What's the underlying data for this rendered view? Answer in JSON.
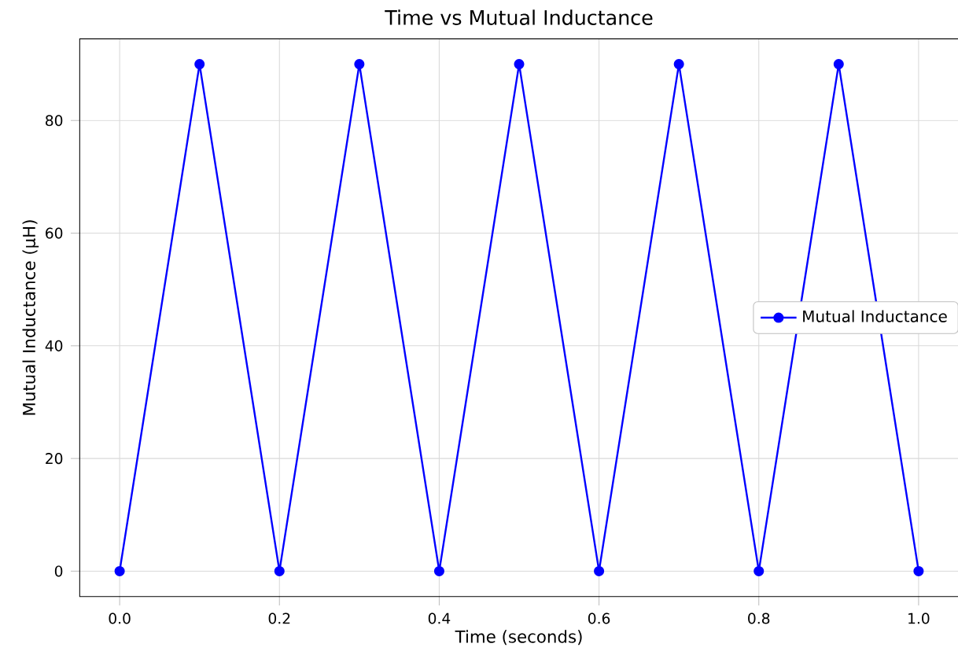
{
  "chart_data": {
    "type": "line",
    "title": "Time vs Mutual Inductance",
    "xlabel": "Time (seconds)",
    "ylabel": "Mutual Inductance (μH)",
    "x": [
      0.0,
      0.1,
      0.2,
      0.3,
      0.4,
      0.5,
      0.6,
      0.7,
      0.8,
      0.9,
      1.0
    ],
    "series": [
      {
        "name": "Mutual Inductance",
        "color": "#0000ff",
        "values": [
          0,
          90,
          0,
          90,
          0,
          90,
          0,
          90,
          0,
          90,
          0
        ]
      }
    ],
    "xlim": [
      -0.05,
      1.05
    ],
    "ylim": [
      -4.5,
      94.5
    ],
    "xticks": [
      {
        "value": 0.0,
        "label": "0.0"
      },
      {
        "value": 0.2,
        "label": "0.2"
      },
      {
        "value": 0.4,
        "label": "0.4"
      },
      {
        "value": 0.6,
        "label": "0.6"
      },
      {
        "value": 0.8,
        "label": "0.8"
      },
      {
        "value": 1.0,
        "label": "1.0"
      }
    ],
    "yticks": [
      0,
      20,
      40,
      60,
      80
    ],
    "grid": true,
    "legend": "right",
    "marker": "circle",
    "line_style": "solid"
  }
}
